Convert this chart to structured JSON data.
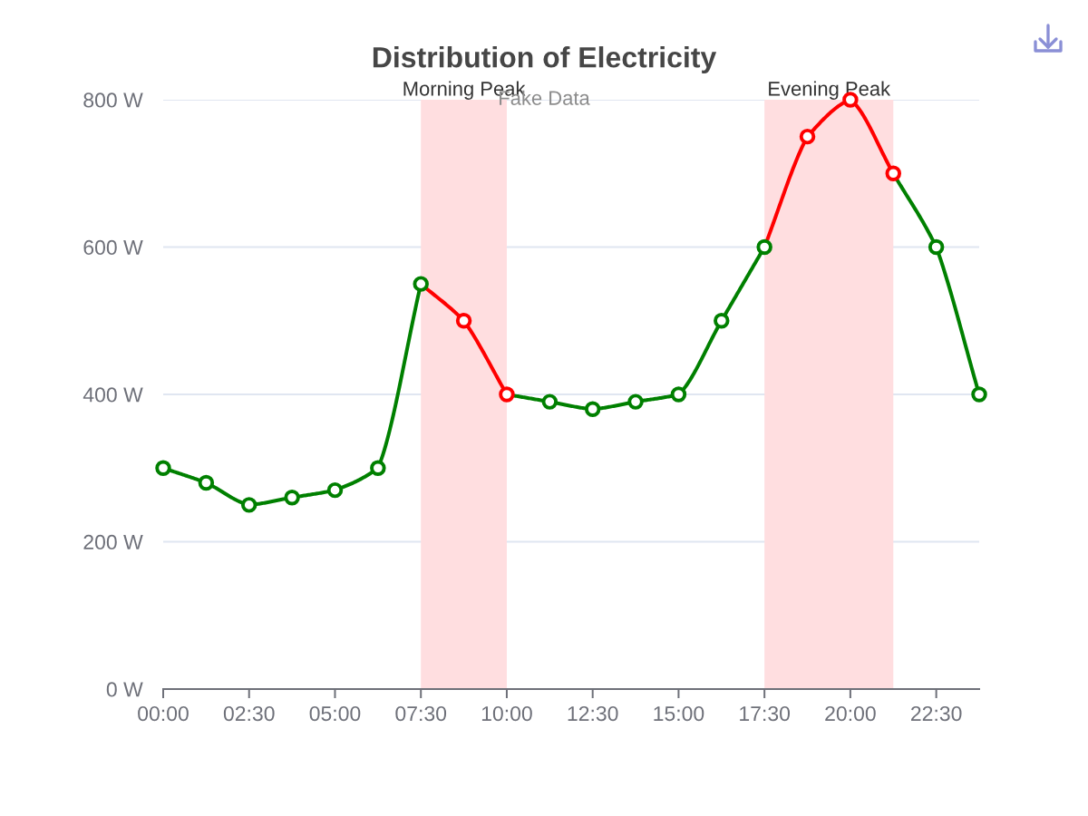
{
  "chart_data": {
    "type": "line",
    "title": "Distribution of Electricity",
    "subtitle": "Fake Data",
    "x": [
      0,
      1.25,
      2.5,
      3.75,
      5,
      6.25,
      7.5,
      8.75,
      10,
      11.25,
      12.5,
      13.75,
      15,
      16.25,
      17.5,
      18.75,
      20,
      21.25,
      22.5,
      23.75
    ],
    "xlim": [
      0,
      23.75
    ],
    "xticks": [
      {
        "value": 0,
        "label": "00:00"
      },
      {
        "value": 2.5,
        "label": "02:30"
      },
      {
        "value": 5,
        "label": "05:00"
      },
      {
        "value": 7.5,
        "label": "07:30"
      },
      {
        "value": 10,
        "label": "10:00"
      },
      {
        "value": 12.5,
        "label": "12:30"
      },
      {
        "value": 15,
        "label": "15:00"
      },
      {
        "value": 17.5,
        "label": "17:30"
      },
      {
        "value": 20,
        "label": "20:00"
      },
      {
        "value": 22.5,
        "label": "22:30"
      }
    ],
    "ylim": [
      0,
      800
    ],
    "yticks": [
      {
        "value": 0,
        "label": "0 W"
      },
      {
        "value": 200,
        "label": "200 W"
      },
      {
        "value": 400,
        "label": "400 W"
      },
      {
        "value": 600,
        "label": "600 W"
      },
      {
        "value": 800,
        "label": "800 W"
      }
    ],
    "series": [
      {
        "color": "#008000",
        "values": [
          300,
          280,
          250,
          260,
          270,
          300,
          550,
          null,
          400,
          390,
          380,
          390,
          400,
          500,
          600,
          null,
          null,
          700,
          600,
          400
        ]
      },
      {
        "color": "#ff0000",
        "colors": [
          null,
          null,
          null,
          null,
          null,
          null,
          "#008000",
          "#ff0000",
          "#ff0000",
          null,
          null,
          null,
          null,
          null,
          "#008000",
          "#ff0000",
          "#ff0000",
          "#ff0000",
          null,
          null
        ],
        "values": [
          null,
          null,
          null,
          null,
          null,
          null,
          550,
          500,
          400,
          null,
          null,
          null,
          null,
          null,
          600,
          750,
          800,
          700,
          null,
          null
        ]
      }
    ],
    "bands": [
      {
        "axis": "x",
        "from": 7.5,
        "to": 10,
        "label": "Morning Peak",
        "color": "#ffdee0"
      },
      {
        "axis": "x",
        "from": 17.5,
        "to": 21.25,
        "label": "Evening Peak",
        "color": "#ffdee0"
      }
    ],
    "grid": "y",
    "marker": "circle",
    "line_style": "solid"
  }
}
